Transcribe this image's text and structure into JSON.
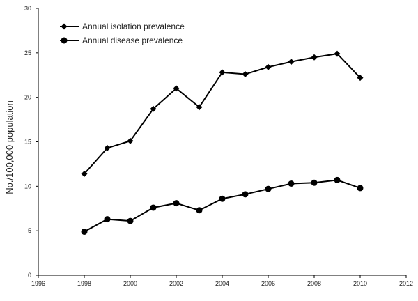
{
  "chart_data": {
    "type": "line",
    "title": "",
    "xlabel": "",
    "ylabel": "No./100,000 population",
    "xlim": [
      1996,
      2012
    ],
    "ylim": [
      0,
      30
    ],
    "x_ticks": [
      1996,
      1998,
      2000,
      2002,
      2004,
      2006,
      2008,
      2010,
      2012
    ],
    "y_ticks": [
      0,
      5,
      10,
      15,
      20,
      25,
      30
    ],
    "grid": false,
    "legend_position": "top-left",
    "x": [
      1998,
      1999,
      2000,
      2001,
      2002,
      2003,
      2004,
      2005,
      2006,
      2007,
      2008,
      2009,
      2010
    ],
    "series": [
      {
        "name": "Annual isolation prevalence",
        "marker": "diamond",
        "color": "#000000",
        "values": [
          11.4,
          14.3,
          15.1,
          18.7,
          21.0,
          18.9,
          22.8,
          22.6,
          23.4,
          24.0,
          24.5,
          24.9,
          22.2
        ]
      },
      {
        "name": "Annual disease prevalence",
        "marker": "circle",
        "color": "#000000",
        "values": [
          4.9,
          6.3,
          6.1,
          7.6,
          8.1,
          7.3,
          8.6,
          9.1,
          9.7,
          10.3,
          10.4,
          10.7,
          9.8
        ]
      }
    ]
  }
}
